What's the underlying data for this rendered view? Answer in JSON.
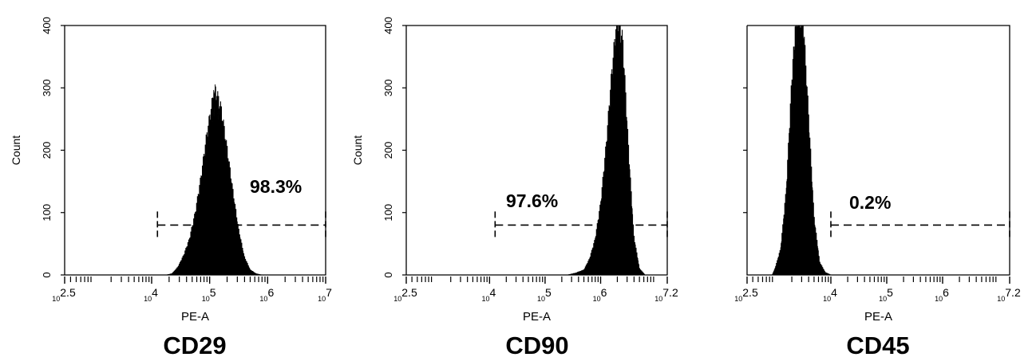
{
  "chart_data": [
    {
      "type": "histogram",
      "title": "CD29",
      "xlabel": "PE-A",
      "ylabel": "Count",
      "x_scale": "log10",
      "xlim": [
        2.5,
        7
      ],
      "ylim": [
        0,
        400
      ],
      "y_ticks": [
        "0",
        "100",
        "200",
        "300",
        "400"
      ],
      "x_ticks": [
        {
          "exp": "2.5",
          "value": 2.5
        },
        {
          "exp": "4",
          "value": 4
        },
        {
          "exp": "5",
          "value": 5
        },
        {
          "exp": "6",
          "value": 6
        },
        {
          "exp": "7",
          "value": 7
        }
      ],
      "peak": {
        "center_log10": 5.1,
        "height": 285
      },
      "histogram_profile": [
        [
          4.25,
          0
        ],
        [
          4.35,
          2
        ],
        [
          4.45,
          12
        ],
        [
          4.55,
          30
        ],
        [
          4.65,
          55
        ],
        [
          4.75,
          95
        ],
        [
          4.85,
          150
        ],
        [
          4.95,
          215
        ],
        [
          5.05,
          268
        ],
        [
          5.1,
          285
        ],
        [
          5.2,
          255
        ],
        [
          5.3,
          195
        ],
        [
          5.4,
          130
        ],
        [
          5.5,
          70
        ],
        [
          5.6,
          28
        ],
        [
          5.7,
          8
        ],
        [
          5.8,
          2
        ],
        [
          5.9,
          0
        ]
      ],
      "gate": {
        "start": 4.1,
        "end": 7,
        "count_level": 80,
        "label": "98.3%"
      }
    },
    {
      "type": "histogram",
      "title": "CD90",
      "xlabel": "PE-A",
      "ylabel": "Count",
      "x_scale": "log10",
      "xlim": [
        2.5,
        7.2
      ],
      "ylim": [
        0,
        400
      ],
      "y_ticks": [
        "0",
        "100",
        "200",
        "300",
        "400"
      ],
      "x_ticks": [
        {
          "exp": "2.5",
          "value": 2.5
        },
        {
          "exp": "4",
          "value": 4
        },
        {
          "exp": "5",
          "value": 5
        },
        {
          "exp": "6",
          "value": 6
        },
        {
          "exp": "7.2",
          "value": 7.2
        }
      ],
      "peak": {
        "center_log10": 6.3,
        "height": 400
      },
      "histogram_profile": [
        [
          5.4,
          0
        ],
        [
          5.55,
          3
        ],
        [
          5.7,
          8
        ],
        [
          5.8,
          25
        ],
        [
          5.9,
          55
        ],
        [
          6.0,
          110
        ],
        [
          6.1,
          200
        ],
        [
          6.2,
          310
        ],
        [
          6.3,
          400
        ],
        [
          6.4,
          360
        ],
        [
          6.5,
          200
        ],
        [
          6.6,
          60
        ],
        [
          6.7,
          10
        ],
        [
          6.8,
          0
        ]
      ],
      "gate": {
        "start": 4.1,
        "end": 7.2,
        "count_level": 80,
        "label": "97.6%"
      }
    },
    {
      "type": "histogram",
      "title": "CD45",
      "xlabel": "PE-A",
      "ylabel": "",
      "x_scale": "log10",
      "xlim": [
        2.5,
        7.2
      ],
      "ylim": [
        0,
        400
      ],
      "y_ticks": [],
      "x_ticks": [
        {
          "exp": "2.5",
          "value": 2.5
        },
        {
          "exp": "4",
          "value": 4
        },
        {
          "exp": "5",
          "value": 5
        },
        {
          "exp": "6",
          "value": 6
        },
        {
          "exp": "7.2",
          "value": 7.2
        }
      ],
      "peak": {
        "center_log10": 3.45,
        "height": 400
      },
      "histogram_profile": [
        [
          2.95,
          0
        ],
        [
          3.0,
          10
        ],
        [
          3.1,
          40
        ],
        [
          3.2,
          130
        ],
        [
          3.3,
          300
        ],
        [
          3.38,
          400
        ],
        [
          3.5,
          400
        ],
        [
          3.6,
          250
        ],
        [
          3.7,
          90
        ],
        [
          3.8,
          20
        ],
        [
          3.9,
          4
        ],
        [
          4.0,
          0
        ]
      ],
      "gate": {
        "start": 4.0,
        "end": 7.2,
        "count_level": 80,
        "label": "0.2%"
      }
    }
  ]
}
